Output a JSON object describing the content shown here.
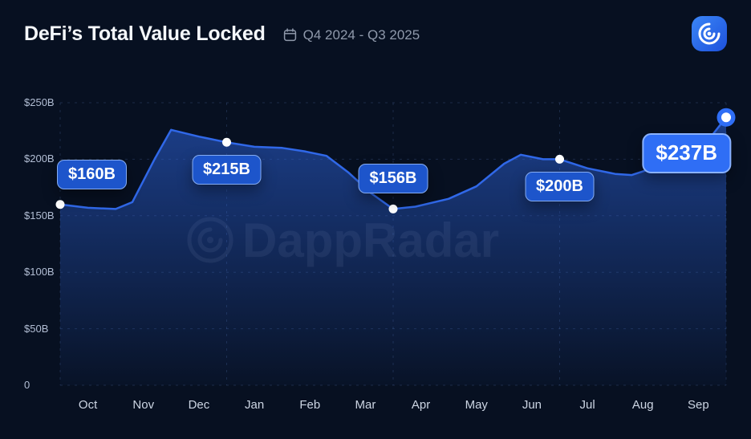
{
  "header": {
    "title": "DeFi’s Total Value Locked",
    "period": "Q4 2024 - Q3 2025",
    "logo_name": "DappRadar"
  },
  "chart_data": {
    "type": "area",
    "title": "DeFi’s Total Value Locked",
    "subtitle": "Q4 2024 - Q3 2025",
    "watermark": "DappRadar",
    "x_tick_labels": [
      "Oct",
      "Nov",
      "Dec",
      "Jan",
      "Feb",
      "Mar",
      "Apr",
      "May",
      "Jun",
      "Jul",
      "Aug",
      "Sep"
    ],
    "x_months_span": 12,
    "y_tick_labels": [
      "$250B",
      "$200B",
      "$150B",
      "$100B",
      "$50B",
      "0"
    ],
    "y_tick_values": [
      250,
      200,
      150,
      100,
      50,
      0
    ],
    "ylim": [
      0,
      250
    ],
    "grid": "dashed",
    "legend": "none",
    "quarter_boundaries_t": [
      0,
      3,
      6,
      9,
      12
    ],
    "series": [
      {
        "name": "DeFi Total Value Locked ($B)",
        "points_t_value": [
          [
            0,
            160
          ],
          [
            0.5,
            157
          ],
          [
            1,
            156
          ],
          [
            1.3,
            162
          ],
          [
            1.7,
            200
          ],
          [
            2,
            226
          ],
          [
            2.5,
            220
          ],
          [
            3,
            215
          ],
          [
            3.5,
            211
          ],
          [
            4,
            210
          ],
          [
            4.4,
            207
          ],
          [
            4.8,
            203
          ],
          [
            5.2,
            188
          ],
          [
            5.6,
            170
          ],
          [
            6,
            156
          ],
          [
            6.4,
            158
          ],
          [
            7,
            165
          ],
          [
            7.5,
            176
          ],
          [
            8,
            196
          ],
          [
            8.3,
            204
          ],
          [
            8.7,
            200
          ],
          [
            9,
            200
          ],
          [
            9.5,
            192
          ],
          [
            10,
            187
          ],
          [
            10.3,
            186
          ],
          [
            10.8,
            194
          ],
          [
            11.2,
            198
          ],
          [
            11.6,
            212
          ],
          [
            12,
            237
          ]
        ]
      }
    ],
    "markers": [
      {
        "t": 0,
        "value": 160,
        "label": "$160B",
        "placement": "above-right",
        "size": "small"
      },
      {
        "t": 3,
        "value": 215,
        "label": "$215B",
        "placement": "below",
        "size": "small"
      },
      {
        "t": 6,
        "value": 156,
        "label": "$156B",
        "placement": "above",
        "size": "small"
      },
      {
        "t": 9,
        "value": 200,
        "label": "$200B",
        "placement": "below",
        "size": "small"
      },
      {
        "t": 12,
        "value": 237,
        "label": "$237B",
        "placement": "below-left",
        "size": "large"
      }
    ],
    "colors": {
      "background": "#071021",
      "line": "#3068e8",
      "area_top": "rgba(47,105,233,0.52)",
      "area_bottom": "rgba(47,105,233,0.03)",
      "grid": "rgba(110,150,220,0.20)",
      "badge_small": "#1d55cb",
      "badge_large": "#2f6ef5",
      "badge_border": "#85acf2"
    }
  }
}
